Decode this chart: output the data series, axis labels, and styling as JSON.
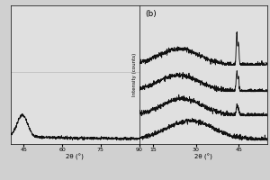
{
  "panel_a": {
    "xlim": [
      40,
      90
    ],
    "xlabel": "2θ (°)",
    "xticks": [
      45,
      60,
      75,
      90
    ],
    "curve_color": "#111111",
    "flat_line_color": "#bbbbbb",
    "bg_color": "#e0e0e0"
  },
  "panel_b": {
    "label": "(b)",
    "xlim": [
      10,
      55
    ],
    "xlabel": "2θ (°)",
    "ylabel": "Intensity (counts)",
    "xticks": [
      15,
      30,
      45
    ],
    "curve_color": "#111111",
    "bg_color": "#e0e0e0"
  },
  "fig_bg": "#d0d0d0"
}
